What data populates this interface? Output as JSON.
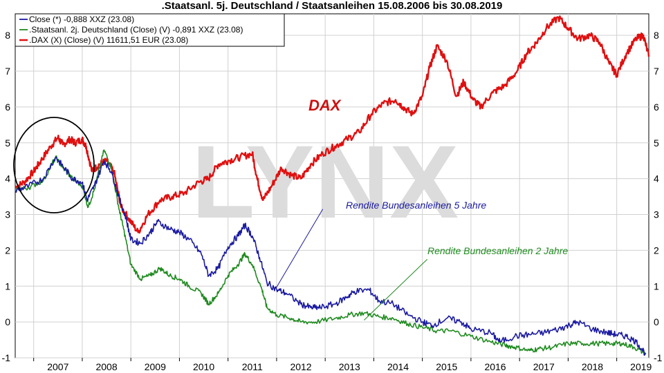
{
  "title": ".Staatsanl. 5j. Deutschland / Staatsanleihen 15.08.2006 bis 30.08.2019",
  "watermark": "LYNX",
  "colors": {
    "blue": "#1a1aa0",
    "green": "#1e8a1e",
    "red": "#e01010",
    "grid": "#d0d0d0",
    "label_dax": "#cc1010"
  },
  "chart_data": {
    "type": "line",
    "title": ".Staatsanl. 5j. Deutschland / Staatsanleihen 15.08.2006 bis 30.08.2019",
    "xlabel": "",
    "ylabel": "",
    "xlim": [
      2006.62,
      2019.66
    ],
    "ylim": [
      -1,
      8.6
    ],
    "x_ticks": [
      "2007",
      "2008",
      "2009",
      "2010",
      "2011",
      "2012",
      "2013",
      "2014",
      "2015",
      "2016",
      "2017",
      "2018",
      "2019"
    ],
    "y_ticks": [
      "-1",
      "0",
      "1",
      "2",
      "3",
      "4",
      "5",
      "6",
      "7",
      "8"
    ],
    "grid": true,
    "legend_position": "top-left",
    "annotations": [
      "DAX",
      "Rendite Bundesanleihen 5 Jahre",
      "Rendite Bundesanleihen 2 Jahre"
    ],
    "series": [
      {
        "name": "Close (*) -0,888 XXZ (23.08)",
        "color": "blue",
        "points": [
          [
            2006.62,
            3.65
          ],
          [
            2006.9,
            3.8
          ],
          [
            2007.2,
            4.0
          ],
          [
            2007.45,
            4.6
          ],
          [
            2007.6,
            4.35
          ],
          [
            2007.8,
            4.0
          ],
          [
            2008.0,
            3.9
          ],
          [
            2008.1,
            3.4
          ],
          [
            2008.25,
            3.8
          ],
          [
            2008.45,
            4.5
          ],
          [
            2008.6,
            4.2
          ],
          [
            2008.75,
            3.5
          ],
          [
            2008.9,
            2.9
          ],
          [
            2009.0,
            2.3
          ],
          [
            2009.2,
            2.2
          ],
          [
            2009.4,
            2.5
          ],
          [
            2009.55,
            2.8
          ],
          [
            2009.8,
            2.6
          ],
          [
            2010.0,
            2.5
          ],
          [
            2010.2,
            2.3
          ],
          [
            2010.45,
            1.9
          ],
          [
            2010.6,
            1.3
          ],
          [
            2010.8,
            1.5
          ],
          [
            2011.0,
            2.1
          ],
          [
            2011.2,
            2.4
          ],
          [
            2011.35,
            2.7
          ],
          [
            2011.5,
            2.4
          ],
          [
            2011.65,
            1.8
          ],
          [
            2011.8,
            1.1
          ],
          [
            2012.0,
            0.9
          ],
          [
            2012.2,
            0.8
          ],
          [
            2012.5,
            0.5
          ],
          [
            2012.7,
            0.4
          ],
          [
            2012.9,
            0.4
          ],
          [
            2013.2,
            0.5
          ],
          [
            2013.45,
            0.7
          ],
          [
            2013.6,
            0.85
          ],
          [
            2013.9,
            0.9
          ],
          [
            2014.1,
            0.6
          ],
          [
            2014.4,
            0.5
          ],
          [
            2014.7,
            0.2
          ],
          [
            2015.0,
            0.0
          ],
          [
            2015.2,
            -0.1
          ],
          [
            2015.5,
            0.1
          ],
          [
            2015.8,
            0.0
          ],
          [
            2016.0,
            -0.2
          ],
          [
            2016.4,
            -0.3
          ],
          [
            2016.6,
            -0.55
          ],
          [
            2016.9,
            -0.4
          ],
          [
            2017.2,
            -0.35
          ],
          [
            2017.5,
            -0.3
          ],
          [
            2017.8,
            -0.2
          ],
          [
            2018.0,
            -0.1
          ],
          [
            2018.2,
            0.0
          ],
          [
            2018.5,
            -0.2
          ],
          [
            2018.8,
            -0.3
          ],
          [
            2019.0,
            -0.35
          ],
          [
            2019.2,
            -0.4
          ],
          [
            2019.4,
            -0.55
          ],
          [
            2019.6,
            -0.89
          ]
        ]
      },
      {
        "name": ".Staatsanl. 2j. Deutschland (Close) (V) -0,891 XXZ (23.08)",
        "color": "green",
        "points": [
          [
            2006.62,
            3.7
          ],
          [
            2006.9,
            3.75
          ],
          [
            2007.2,
            3.95
          ],
          [
            2007.45,
            4.6
          ],
          [
            2007.6,
            4.3
          ],
          [
            2007.8,
            4.0
          ],
          [
            2008.0,
            3.8
          ],
          [
            2008.12,
            3.2
          ],
          [
            2008.25,
            3.7
          ],
          [
            2008.45,
            4.8
          ],
          [
            2008.6,
            4.3
          ],
          [
            2008.75,
            3.2
          ],
          [
            2008.85,
            2.6
          ],
          [
            2009.0,
            1.6
          ],
          [
            2009.2,
            1.2
          ],
          [
            2009.4,
            1.3
          ],
          [
            2009.6,
            1.5
          ],
          [
            2009.8,
            1.3
          ],
          [
            2010.0,
            1.2
          ],
          [
            2010.2,
            1.0
          ],
          [
            2010.45,
            0.8
          ],
          [
            2010.6,
            0.5
          ],
          [
            2010.8,
            0.8
          ],
          [
            2011.0,
            1.3
          ],
          [
            2011.2,
            1.6
          ],
          [
            2011.35,
            1.9
          ],
          [
            2011.5,
            1.6
          ],
          [
            2011.7,
            0.9
          ],
          [
            2011.8,
            0.4
          ],
          [
            2012.0,
            0.2
          ],
          [
            2012.3,
            0.1
          ],
          [
            2012.5,
            0.0
          ],
          [
            2012.8,
            0.0
          ],
          [
            2013.2,
            0.1
          ],
          [
            2013.5,
            0.2
          ],
          [
            2013.8,
            0.25
          ],
          [
            2014.1,
            0.15
          ],
          [
            2014.4,
            0.1
          ],
          [
            2014.7,
            -0.05
          ],
          [
            2015.0,
            -0.15
          ],
          [
            2015.3,
            -0.25
          ],
          [
            2015.6,
            -0.25
          ],
          [
            2016.0,
            -0.4
          ],
          [
            2016.4,
            -0.55
          ],
          [
            2016.7,
            -0.65
          ],
          [
            2016.9,
            -0.7
          ],
          [
            2017.2,
            -0.8
          ],
          [
            2017.4,
            -0.75
          ],
          [
            2017.7,
            -0.7
          ],
          [
            2018.0,
            -0.6
          ],
          [
            2018.3,
            -0.6
          ],
          [
            2018.6,
            -0.6
          ],
          [
            2018.9,
            -0.6
          ],
          [
            2019.1,
            -0.6
          ],
          [
            2019.35,
            -0.7
          ],
          [
            2019.6,
            -0.89
          ]
        ]
      },
      {
        "name": ".DAX (X) (Close) (V) 11611,51 EUR (23.08)",
        "color": "red",
        "points": [
          [
            2006.62,
            3.75
          ],
          [
            2006.8,
            3.9
          ],
          [
            2007.0,
            4.2
          ],
          [
            2007.15,
            4.5
          ],
          [
            2007.35,
            4.9
          ],
          [
            2007.5,
            5.15
          ],
          [
            2007.6,
            4.95
          ],
          [
            2007.75,
            5.1
          ],
          [
            2007.85,
            5.0
          ],
          [
            2008.0,
            5.1
          ],
          [
            2008.08,
            4.9
          ],
          [
            2008.2,
            4.2
          ],
          [
            2008.35,
            4.4
          ],
          [
            2008.5,
            4.5
          ],
          [
            2008.65,
            4.2
          ],
          [
            2008.8,
            3.2
          ],
          [
            2008.95,
            2.9
          ],
          [
            2009.15,
            2.5
          ],
          [
            2009.35,
            3.0
          ],
          [
            2009.6,
            3.4
          ],
          [
            2009.85,
            3.5
          ],
          [
            2010.1,
            3.6
          ],
          [
            2010.4,
            3.9
          ],
          [
            2010.6,
            4.0
          ],
          [
            2010.8,
            4.4
          ],
          [
            2011.0,
            4.5
          ],
          [
            2011.25,
            4.6
          ],
          [
            2011.5,
            4.7
          ],
          [
            2011.6,
            4.0
          ],
          [
            2011.72,
            3.4
          ],
          [
            2011.9,
            3.8
          ],
          [
            2012.1,
            4.3
          ],
          [
            2012.3,
            4.1
          ],
          [
            2012.5,
            4.0
          ],
          [
            2012.7,
            4.4
          ],
          [
            2012.95,
            4.7
          ],
          [
            2013.2,
            4.9
          ],
          [
            2013.45,
            5.1
          ],
          [
            2013.7,
            5.3
          ],
          [
            2013.95,
            5.8
          ],
          [
            2014.2,
            6.1
          ],
          [
            2014.45,
            6.2
          ],
          [
            2014.6,
            6.0
          ],
          [
            2014.8,
            5.8
          ],
          [
            2015.0,
            6.3
          ],
          [
            2015.15,
            7.1
          ],
          [
            2015.3,
            7.7
          ],
          [
            2015.5,
            7.3
          ],
          [
            2015.7,
            6.3
          ],
          [
            2015.85,
            6.7
          ],
          [
            2016.05,
            6.2
          ],
          [
            2016.2,
            6.0
          ],
          [
            2016.45,
            6.4
          ],
          [
            2016.7,
            6.6
          ],
          [
            2016.95,
            7.0
          ],
          [
            2017.15,
            7.5
          ],
          [
            2017.35,
            7.8
          ],
          [
            2017.55,
            8.2
          ],
          [
            2017.8,
            8.5
          ],
          [
            2018.0,
            8.2
          ],
          [
            2018.2,
            7.9
          ],
          [
            2018.45,
            8.0
          ],
          [
            2018.65,
            7.8
          ],
          [
            2018.85,
            7.2
          ],
          [
            2019.0,
            6.9
          ],
          [
            2019.2,
            7.5
          ],
          [
            2019.4,
            7.9
          ],
          [
            2019.55,
            8.0
          ],
          [
            2019.66,
            7.4
          ]
        ]
      }
    ]
  },
  "annotation_lines": [
    {
      "label": "Rendite Bundesanleihen 5 Jahre",
      "from": [
        2011.99,
        0.95
      ],
      "to": [
        2012.95,
        3.15
      ]
    },
    {
      "label": "Rendite Bundesanleihen 2 Jahre",
      "from": [
        2013.8,
        0.05
      ],
      "to": [
        2015.1,
        1.75
      ]
    }
  ]
}
